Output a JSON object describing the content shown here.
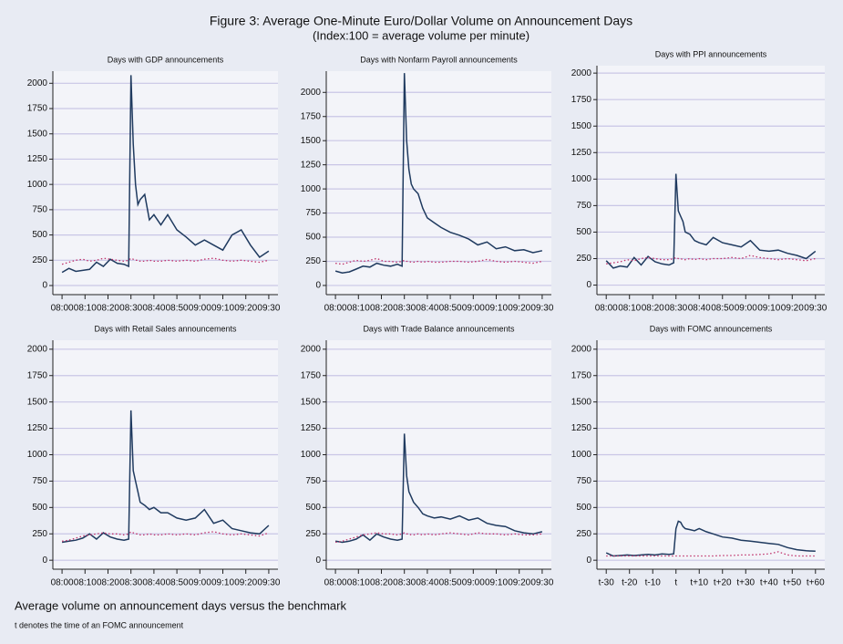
{
  "figure": {
    "title": "Figure 3: Average One-Minute Euro/Dollar Volume on Announcement Days",
    "subtitle": "(Index:100 = average volume per minute)",
    "caption": "Average volume on announcement days versus the benchmark",
    "note": "t denotes the time of an FOMC announcement"
  },
  "chart_data": [
    {
      "type": "line",
      "title": "Days with GDP announcements",
      "x": [
        0,
        3,
        6,
        9,
        12,
        15,
        18,
        21,
        24,
        27,
        29,
        30,
        31,
        32,
        33,
        34,
        36,
        38,
        40,
        43,
        46,
        50,
        54,
        58,
        62,
        66,
        70,
        74,
        78,
        82,
        86,
        90
      ],
      "series": [
        {
          "color": "#1f3a5f",
          "style": "solid",
          "values": [
            130,
            170,
            140,
            150,
            160,
            230,
            190,
            260,
            220,
            210,
            190,
            2080,
            1400,
            1000,
            800,
            850,
            900,
            650,
            700,
            600,
            700,
            550,
            480,
            400,
            450,
            400,
            350,
            500,
            550,
            400,
            280,
            340
          ]
        },
        {
          "color": "#c0306a",
          "style": "dotted",
          "values": [
            210,
            230,
            250,
            260,
            240,
            250,
            270,
            260,
            250,
            240,
            250,
            270,
            260,
            250,
            250,
            240,
            240,
            250,
            240,
            240,
            250,
            240,
            250,
            240,
            260,
            270,
            250,
            240,
            250,
            240,
            230,
            250
          ]
        }
      ],
      "xlim": [
        -4,
        94
      ],
      "ylim": [
        -90,
        2120
      ],
      "xticks": [
        {
          "value": 0,
          "label": "08:00"
        },
        {
          "value": 10,
          "label": "08:10"
        },
        {
          "value": 20,
          "label": "08:20"
        },
        {
          "value": 30,
          "label": "08:30"
        },
        {
          "value": 40,
          "label": "08:40"
        },
        {
          "value": 50,
          "label": "08:50"
        },
        {
          "value": 60,
          "label": "09:00"
        },
        {
          "value": 70,
          "label": "09:10"
        },
        {
          "value": 80,
          "label": "09:20"
        },
        {
          "value": 90,
          "label": "09:30"
        }
      ],
      "yticks": [
        0,
        250,
        500,
        750,
        1000,
        1250,
        1500,
        1750,
        2000
      ],
      "grid": true
    },
    {
      "type": "line",
      "title": "Days with Nonfarm Payroll announcements",
      "x": [
        0,
        3,
        6,
        9,
        12,
        15,
        18,
        21,
        24,
        27,
        29,
        30,
        31,
        32,
        33,
        34,
        36,
        38,
        40,
        43,
        46,
        50,
        54,
        58,
        62,
        66,
        70,
        74,
        78,
        82,
        86,
        90
      ],
      "series": [
        {
          "color": "#1f3a5f",
          "style": "solid",
          "values": [
            150,
            130,
            140,
            170,
            200,
            190,
            230,
            210,
            200,
            220,
            200,
            2200,
            1500,
            1200,
            1050,
            1000,
            950,
            800,
            700,
            650,
            600,
            550,
            520,
            480,
            420,
            450,
            380,
            400,
            360,
            370,
            340,
            360
          ]
        },
        {
          "color": "#c0306a",
          "style": "dotted",
          "values": [
            230,
            220,
            240,
            260,
            250,
            260,
            280,
            250,
            250,
            240,
            250,
            260,
            250,
            250,
            240,
            240,
            250,
            240,
            250,
            240,
            240,
            250,
            250,
            240,
            250,
            270,
            250,
            240,
            250,
            240,
            230,
            250
          ]
        }
      ],
      "xlim": [
        -4,
        94
      ],
      "ylim": [
        -95,
        2220
      ],
      "xticks": [
        {
          "value": 0,
          "label": "08:00"
        },
        {
          "value": 10,
          "label": "08:10"
        },
        {
          "value": 20,
          "label": "08:20"
        },
        {
          "value": 30,
          "label": "08:30"
        },
        {
          "value": 40,
          "label": "08:40"
        },
        {
          "value": 50,
          "label": "08:50"
        },
        {
          "value": 60,
          "label": "09:00"
        },
        {
          "value": 70,
          "label": "09:10"
        },
        {
          "value": 80,
          "label": "09:20"
        },
        {
          "value": 90,
          "label": "09:30"
        }
      ],
      "yticks": [
        0,
        250,
        500,
        750,
        1000,
        1250,
        1500,
        1750,
        2000
      ],
      "grid": true
    },
    {
      "type": "line",
      "title": "Days with PPI announcements",
      "x": [
        0,
        3,
        6,
        9,
        12,
        15,
        18,
        21,
        24,
        27,
        29,
        30,
        31,
        32,
        33,
        34,
        36,
        38,
        40,
        43,
        46,
        50,
        54,
        58,
        62,
        66,
        70,
        74,
        78,
        82,
        86,
        90
      ],
      "series": [
        {
          "color": "#1f3a5f",
          "style": "solid",
          "values": [
            230,
            160,
            180,
            170,
            260,
            190,
            270,
            220,
            200,
            190,
            210,
            1050,
            700,
            650,
            600,
            500,
            480,
            420,
            400,
            380,
            450,
            400,
            380,
            360,
            420,
            330,
            320,
            330,
            300,
            280,
            250,
            320
          ]
        },
        {
          "color": "#c0306a",
          "style": "dotted",
          "values": [
            200,
            210,
            220,
            240,
            230,
            250,
            260,
            250,
            240,
            240,
            250,
            260,
            250,
            250,
            240,
            240,
            250,
            240,
            250,
            240,
            250,
            250,
            260,
            250,
            280,
            260,
            250,
            240,
            250,
            240,
            230,
            250
          ]
        }
      ],
      "xlim": [
        -4,
        94
      ],
      "ylim": [
        -90,
        2070
      ],
      "xticks": [
        {
          "value": 0,
          "label": "08:00"
        },
        {
          "value": 10,
          "label": "08:10"
        },
        {
          "value": 20,
          "label": "08:20"
        },
        {
          "value": 30,
          "label": "08:30"
        },
        {
          "value": 40,
          "label": "08:40"
        },
        {
          "value": 50,
          "label": "08:50"
        },
        {
          "value": 60,
          "label": "09:00"
        },
        {
          "value": 70,
          "label": "09:10"
        },
        {
          "value": 80,
          "label": "09:20"
        },
        {
          "value": 90,
          "label": "09:30"
        }
      ],
      "yticks": [
        0,
        250,
        500,
        750,
        1000,
        1250,
        1500,
        1750,
        2000
      ],
      "grid": true
    },
    {
      "type": "line",
      "title": "Days with Retail Sales announcements",
      "x": [
        0,
        3,
        6,
        9,
        12,
        15,
        18,
        21,
        24,
        27,
        29,
        30,
        31,
        32,
        33,
        34,
        36,
        38,
        40,
        43,
        46,
        50,
        54,
        58,
        62,
        66,
        70,
        74,
        78,
        82,
        86,
        90
      ],
      "series": [
        {
          "color": "#1f3a5f",
          "style": "solid",
          "values": [
            170,
            180,
            190,
            210,
            250,
            200,
            260,
            220,
            200,
            190,
            200,
            1420,
            850,
            750,
            650,
            550,
            520,
            480,
            500,
            450,
            450,
            400,
            380,
            400,
            480,
            350,
            380,
            300,
            280,
            260,
            250,
            330
          ]
        },
        {
          "color": "#c0306a",
          "style": "dotted",
          "values": [
            180,
            190,
            210,
            230,
            240,
            250,
            260,
            250,
            250,
            240,
            250,
            270,
            260,
            250,
            250,
            240,
            240,
            250,
            240,
            240,
            250,
            240,
            250,
            240,
            260,
            270,
            250,
            240,
            250,
            240,
            230,
            260
          ]
        }
      ],
      "xlim": [
        -4,
        94
      ],
      "ylim": [
        -85,
        2085
      ],
      "xticks": [
        {
          "value": 0,
          "label": "08:00"
        },
        {
          "value": 10,
          "label": "08:10"
        },
        {
          "value": 20,
          "label": "08:20"
        },
        {
          "value": 30,
          "label": "08:30"
        },
        {
          "value": 40,
          "label": "08:40"
        },
        {
          "value": 50,
          "label": "08:50"
        },
        {
          "value": 60,
          "label": "09:00"
        },
        {
          "value": 70,
          "label": "09:10"
        },
        {
          "value": 80,
          "label": "09:20"
        },
        {
          "value": 90,
          "label": "09:30"
        }
      ],
      "yticks": [
        0,
        250,
        500,
        750,
        1000,
        1250,
        1500,
        1750,
        2000
      ],
      "grid": true
    },
    {
      "type": "line",
      "title": "Days with Trade Balance announcements",
      "x": [
        0,
        3,
        6,
        9,
        12,
        15,
        18,
        21,
        24,
        27,
        29,
        30,
        31,
        32,
        33,
        34,
        36,
        38,
        40,
        43,
        46,
        50,
        54,
        58,
        62,
        66,
        70,
        74,
        78,
        82,
        86,
        90
      ],
      "series": [
        {
          "color": "#1f3a5f",
          "style": "solid",
          "values": [
            180,
            170,
            180,
            200,
            240,
            190,
            250,
            220,
            200,
            190,
            200,
            1200,
            800,
            650,
            600,
            550,
            500,
            440,
            420,
            400,
            410,
            390,
            420,
            380,
            400,
            350,
            330,
            320,
            280,
            260,
            250,
            270
          ]
        },
        {
          "color": "#c0306a",
          "style": "dotted",
          "values": [
            170,
            180,
            200,
            220,
            240,
            250,
            260,
            250,
            250,
            240,
            250,
            260,
            250,
            250,
            240,
            240,
            250,
            240,
            250,
            240,
            250,
            260,
            250,
            240,
            260,
            250,
            250,
            240,
            250,
            240,
            240,
            250
          ]
        }
      ],
      "xlim": [
        -4,
        94
      ],
      "ylim": [
        -85,
        2085
      ],
      "xticks": [
        {
          "value": 0,
          "label": "08:00"
        },
        {
          "value": 10,
          "label": "08:10"
        },
        {
          "value": 20,
          "label": "08:20"
        },
        {
          "value": 30,
          "label": "08:30"
        },
        {
          "value": 40,
          "label": "08:40"
        },
        {
          "value": 50,
          "label": "08:50"
        },
        {
          "value": 60,
          "label": "09:00"
        },
        {
          "value": 70,
          "label": "09:10"
        },
        {
          "value": 80,
          "label": "09:20"
        },
        {
          "value": 90,
          "label": "09:30"
        }
      ],
      "yticks": [
        0,
        250,
        500,
        750,
        1000,
        1250,
        1500,
        1750,
        2000
      ],
      "grid": true
    },
    {
      "type": "line",
      "title": "Days with FOMC announcements",
      "x": [
        -30,
        -27,
        -24,
        -21,
        -18,
        -15,
        -12,
        -9,
        -6,
        -3,
        -1,
        0,
        1,
        2,
        3,
        4,
        6,
        8,
        10,
        13,
        16,
        20,
        24,
        28,
        32,
        36,
        40,
        44,
        48,
        52,
        56,
        60
      ],
      "series": [
        {
          "color": "#1f3a5f",
          "style": "solid",
          "values": [
            70,
            40,
            45,
            50,
            45,
            50,
            55,
            50,
            60,
            55,
            60,
            300,
            370,
            360,
            320,
            300,
            290,
            280,
            300,
            270,
            250,
            220,
            210,
            190,
            180,
            170,
            160,
            150,
            120,
            100,
            90,
            85
          ]
        },
        {
          "color": "#c0306a",
          "style": "dotted",
          "values": [
            40,
            40,
            40,
            40,
            40,
            40,
            40,
            40,
            40,
            40,
            40,
            40,
            40,
            40,
            40,
            40,
            40,
            40,
            40,
            40,
            40,
            45,
            45,
            50,
            50,
            55,
            60,
            80,
            50,
            40,
            40,
            40
          ]
        }
      ],
      "xlim": [
        -34,
        64
      ],
      "ylim": [
        -85,
        2085
      ],
      "xticks": [
        {
          "value": -30,
          "label": "t-30"
        },
        {
          "value": -20,
          "label": "t-20"
        },
        {
          "value": -10,
          "label": "t-10"
        },
        {
          "value": 0,
          "label": "t"
        },
        {
          "value": 10,
          "label": "t+10"
        },
        {
          "value": 20,
          "label": "t+20"
        },
        {
          "value": 30,
          "label": "t+30"
        },
        {
          "value": 40,
          "label": "t+40"
        },
        {
          "value": 50,
          "label": "t+50"
        },
        {
          "value": 60,
          "label": "t+60"
        }
      ],
      "yticks": [
        0,
        250,
        500,
        750,
        1000,
        1250,
        1500,
        1750,
        2000
      ],
      "grid": true
    }
  ]
}
